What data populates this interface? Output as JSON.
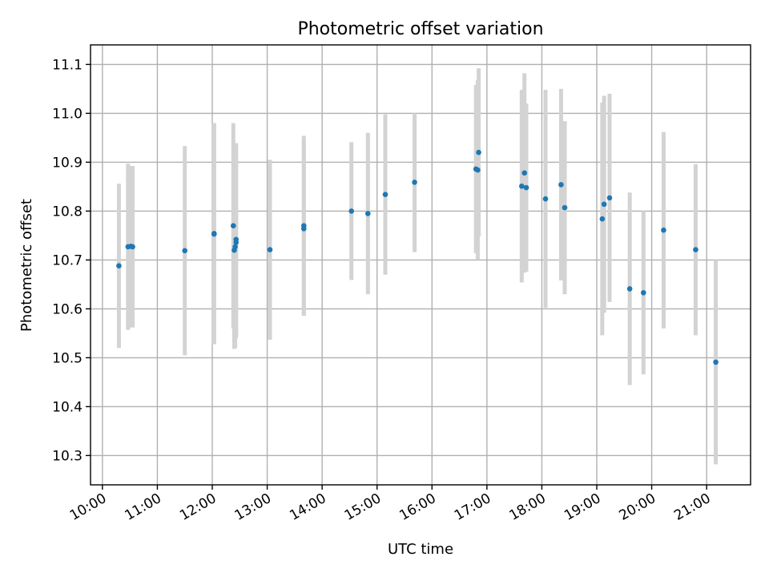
{
  "chart_data": {
    "type": "scatter",
    "title": "Photometric offset variation",
    "xlabel": "UTC time",
    "ylabel": "Photometric offset",
    "x_tick_labels": [
      "10:00",
      "11:00",
      "12:00",
      "13:00",
      "14:00",
      "15:00",
      "16:00",
      "17:00",
      "18:00",
      "19:00",
      "20:00",
      "21:00"
    ],
    "y_tick_labels": [
      "10.3",
      "10.4",
      "10.5",
      "10.6",
      "10.7",
      "10.8",
      "10.9",
      "11.0",
      "11.1"
    ],
    "x_ticks_hours": [
      10,
      11,
      12,
      13,
      14,
      15,
      16,
      17,
      18,
      19,
      20,
      21
    ],
    "y_ticks": [
      10.3,
      10.4,
      10.5,
      10.6,
      10.7,
      10.8,
      10.9,
      11.0,
      11.1
    ],
    "xlim": [
      "09:47",
      "21:48"
    ],
    "ylim": [
      10.24,
      11.14
    ],
    "grid": true,
    "point_color": "#1f77b4",
    "errorbar_color": "#d3d3d3",
    "points": [
      {
        "x": "10:18",
        "y": 10.688,
        "ylow": 10.52,
        "yhigh": 10.856
      },
      {
        "x": "10:28",
        "y": 10.727,
        "ylow": 10.557,
        "yhigh": 10.897
      },
      {
        "x": "10:31",
        "y": 10.728,
        "ylow": 10.562,
        "yhigh": 10.892
      },
      {
        "x": "10:33",
        "y": 10.727,
        "ylow": 10.562,
        "yhigh": 10.892
      },
      {
        "x": "11:30",
        "y": 10.719,
        "ylow": 10.505,
        "yhigh": 10.933
      },
      {
        "x": "12:02",
        "y": 10.754,
        "ylow": 10.528,
        "yhigh": 10.98
      },
      {
        "x": "12:02",
        "y": 10.753,
        "ylow": 10.528,
        "yhigh": 10.978
      },
      {
        "x": "12:23",
        "y": 10.77,
        "ylow": 10.56,
        "yhigh": 10.98
      },
      {
        "x": "12:24",
        "y": 10.72,
        "ylow": 10.518,
        "yhigh": 10.922
      },
      {
        "x": "12:25",
        "y": 10.727,
        "ylow": 10.52,
        "yhigh": 10.934
      },
      {
        "x": "12:26",
        "y": 10.742,
        "ylow": 10.545,
        "yhigh": 10.939
      },
      {
        "x": "12:26",
        "y": 10.736,
        "ylow": 10.54,
        "yhigh": 10.932
      },
      {
        "x": "13:03",
        "y": 10.721,
        "ylow": 10.537,
        "yhigh": 10.905
      },
      {
        "x": "13:40",
        "y": 10.77,
        "ylow": 10.586,
        "yhigh": 10.954
      },
      {
        "x": "13:40",
        "y": 10.764,
        "ylow": 10.586,
        "yhigh": 10.942
      },
      {
        "x": "14:32",
        "y": 10.8,
        "ylow": 10.659,
        "yhigh": 10.941
      },
      {
        "x": "14:50",
        "y": 10.795,
        "ylow": 10.63,
        "yhigh": 10.96
      },
      {
        "x": "15:09",
        "y": 10.834,
        "ylow": 10.67,
        "yhigh": 10.998
      },
      {
        "x": "15:41",
        "y": 10.859,
        "ylow": 10.716,
        "yhigh": 11.0
      },
      {
        "x": "16:48",
        "y": 10.886,
        "ylow": 10.714,
        "yhigh": 11.058
      },
      {
        "x": "16:50",
        "y": 10.884,
        "ylow": 10.7,
        "yhigh": 11.068
      },
      {
        "x": "16:51",
        "y": 10.92,
        "ylow": 10.748,
        "yhigh": 11.092
      },
      {
        "x": "17:38",
        "y": 10.851,
        "ylow": 10.654,
        "yhigh": 11.048
      },
      {
        "x": "17:41",
        "y": 10.878,
        "ylow": 10.674,
        "yhigh": 11.082
      },
      {
        "x": "17:43",
        "y": 10.848,
        "ylow": 10.676,
        "yhigh": 11.02
      },
      {
        "x": "18:04",
        "y": 10.825,
        "ylow": 10.602,
        "yhigh": 11.048
      },
      {
        "x": "18:21",
        "y": 10.854,
        "ylow": 10.658,
        "yhigh": 11.05
      },
      {
        "x": "18:25",
        "y": 10.807,
        "ylow": 10.63,
        "yhigh": 10.984
      },
      {
        "x": "19:06",
        "y": 10.784,
        "ylow": 10.546,
        "yhigh": 11.022
      },
      {
        "x": "19:08",
        "y": 10.814,
        "ylow": 10.592,
        "yhigh": 11.036
      },
      {
        "x": "19:14",
        "y": 10.827,
        "ylow": 10.614,
        "yhigh": 11.04
      },
      {
        "x": "19:36",
        "y": 10.641,
        "ylow": 10.444,
        "yhigh": 10.838
      },
      {
        "x": "19:51",
        "y": 10.633,
        "ylow": 10.466,
        "yhigh": 10.8
      },
      {
        "x": "20:13",
        "y": 10.761,
        "ylow": 10.56,
        "yhigh": 10.962
      },
      {
        "x": "20:48",
        "y": 10.721,
        "ylow": 10.546,
        "yhigh": 10.896
      },
      {
        "x": "21:10",
        "y": 10.491,
        "ylow": 10.282,
        "yhigh": 10.7
      }
    ]
  }
}
